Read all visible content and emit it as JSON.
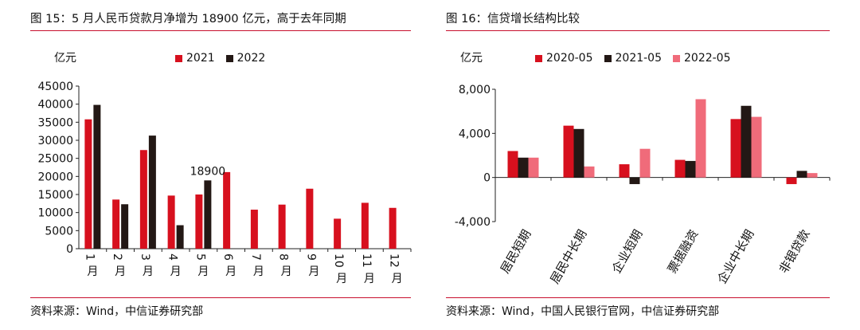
{
  "left": {
    "figure_title": "图 15：5 月人民币贷款月净增为 18900 亿元，高于去年同期",
    "source": "资料来源：Wind，中信证券研究部",
    "unit": "亿元",
    "annotation": "18900",
    "colors": {
      "2021": "#d7101e",
      "2022": "#231815"
    }
  },
  "right": {
    "figure_title": "图 16：信贷增长结构比较",
    "source": "资料来源：Wind，中国人民银行官网，中信证券研究部",
    "unit": "亿元",
    "colors": {
      "2020-05": "#d7101e",
      "2021-05": "#231815",
      "2022-05": "#f06b7a"
    }
  },
  "chart_data": [
    {
      "type": "bar",
      "categories": [
        "1月",
        "2月",
        "3月",
        "4月",
        "5月",
        "6月",
        "7月",
        "8月",
        "9月",
        "10月",
        "11月",
        "12月"
      ],
      "series": [
        {
          "name": "2021",
          "values": [
            35800,
            13600,
            27300,
            14700,
            15000,
            21200,
            10800,
            12200,
            16600,
            8300,
            12700,
            11300
          ]
        },
        {
          "name": "2022",
          "values": [
            39800,
            12300,
            31300,
            6500,
            18900,
            null,
            null,
            null,
            null,
            null,
            null,
            null
          ]
        }
      ],
      "yticks": [
        "0",
        "5000",
        "10000",
        "15000",
        "20000",
        "25000",
        "30000",
        "35000",
        "40000",
        "45000"
      ],
      "ylim": [
        0,
        45000
      ],
      "ylabel": "亿元",
      "annotations": [
        {
          "text": "18900",
          "category": "5月",
          "series": "2022"
        }
      ],
      "legend": "top"
    },
    {
      "type": "bar",
      "categories": [
        "居民短期",
        "居民中长期",
        "企业短期",
        "票据融资",
        "企业中长期",
        "非银贷款"
      ],
      "series": [
        {
          "name": "2020-05",
          "values": [
            2400,
            4700,
            1200,
            1600,
            5300,
            -600
          ]
        },
        {
          "name": "2021-05",
          "values": [
            1800,
            4400,
            -600,
            1500,
            6500,
            600
          ]
        },
        {
          "name": "2022-05",
          "values": [
            1800,
            1000,
            2600,
            7100,
            5500,
            400
          ]
        }
      ],
      "yticks": [
        "-4,000",
        "0",
        "4,000",
        "8,000"
      ],
      "ylim": [
        -4000,
        8000
      ],
      "ylabel": "亿元",
      "legend": "top"
    }
  ]
}
